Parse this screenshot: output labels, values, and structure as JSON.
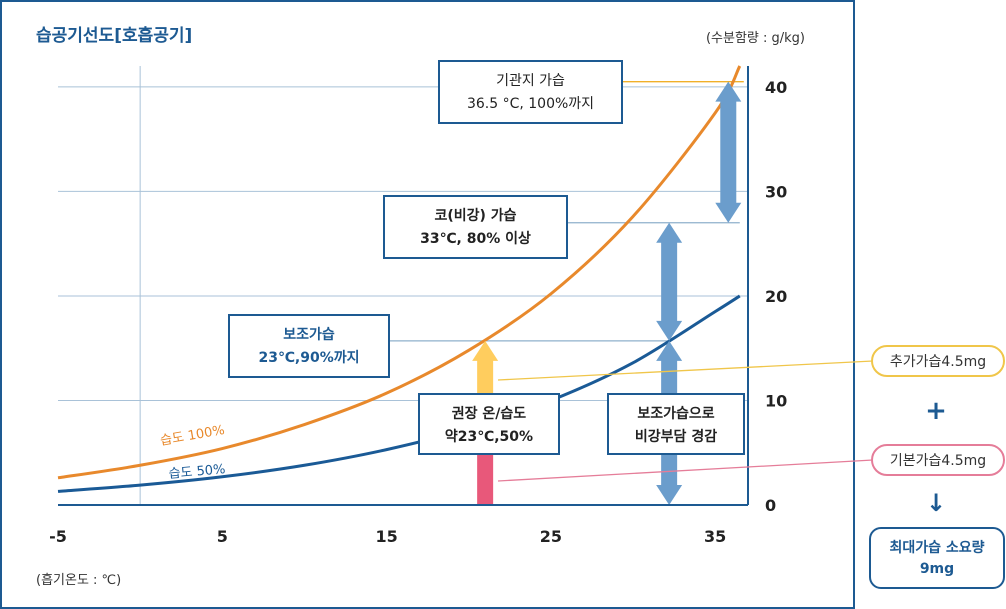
{
  "chart_data": {
    "type": "line",
    "title": "습공기선도[호흡공기]",
    "xlabel": "(흡기온도 : ℃)",
    "ylabel": "(수분함량 : g/kg)",
    "xlim": [
      -5,
      37
    ],
    "ylim": [
      0,
      42
    ],
    "x_ticks": [
      "-5",
      "5",
      "15",
      "25",
      "35"
    ],
    "y_ticks": [
      "0",
      "10",
      "20",
      "30",
      "40"
    ],
    "x_gridlines": [
      0
    ],
    "y_gridlines": [
      10,
      20,
      30,
      40
    ],
    "series": [
      {
        "name": "습도 100%",
        "color": "#e8892c",
        "x": [
          -5,
          0,
          5,
          10,
          15,
          20,
          25,
          30,
          35,
          36.5
        ],
        "y": [
          2.6,
          3.8,
          5.4,
          7.7,
          10.7,
          14.8,
          20.2,
          27.6,
          37.5,
          42.0
        ]
      },
      {
        "name": "습도 50%",
        "color": "#1a5a96",
        "x": [
          -5,
          0,
          5,
          10,
          15,
          20,
          25,
          30,
          35,
          36.5
        ],
        "y": [
          1.3,
          1.9,
          2.7,
          3.8,
          5.3,
          7.3,
          10.0,
          13.6,
          18.5,
          20.0
        ]
      }
    ],
    "levels": [
      {
        "label_line1": "기관지 가습",
        "label_line2": "36.5 °C, 100%까지",
        "y": 40.5,
        "line_color": "#f0b02a"
      },
      {
        "label_line1": "코(비강) 가습",
        "label_line2": "33℃, 80% 이상",
        "y": 27.0,
        "line_color": "#8fb0cc"
      },
      {
        "label_line1": "보조가습",
        "label_line2": "23℃,90%까지",
        "y": 15.7,
        "line_color": "#8fb0cc"
      },
      {
        "label_line1": "권장 온/습도",
        "label_line2": "약23℃,50%",
        "y": 8.8
      },
      {
        "label_line1": "보조가습으로",
        "label_line2": "비강부담 경감",
        "y": 8.8
      }
    ],
    "arrows": [
      {
        "kind": "up",
        "color": "#e8587a",
        "x": 21,
        "from": 0,
        "to": 8.4
      },
      {
        "kind": "up",
        "color": "#ffcd5e",
        "x": 21,
        "from": 10.4,
        "to": 15.7
      },
      {
        "kind": "double",
        "color": "#6b9dcc",
        "x": 32.2,
        "from": 0,
        "to": 15.7
      },
      {
        "kind": "double",
        "color": "#6b9dcc",
        "x": 32.2,
        "from": 15.7,
        "to": 27.0
      },
      {
        "kind": "double",
        "color": "#6b9dcc",
        "x": 35.8,
        "from": 27.0,
        "to": 40.5
      }
    ]
  },
  "sidebar": {
    "added": "추가가습4.5mg",
    "plus": "+",
    "base": "기본가습4.5mg",
    "down": "↓",
    "result_line1": "최대가습 소요량",
    "result_line2": "9mg",
    "added_color": "#f0c64a",
    "base_color": "#e57d99",
    "accent": "#1d5a92"
  }
}
